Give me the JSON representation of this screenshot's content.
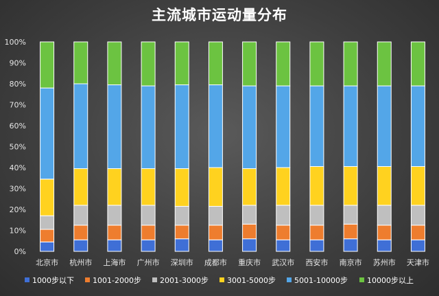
{
  "chart_data": {
    "type": "bar",
    "stacked": true,
    "percent": true,
    "title": "主流城市运动量分布",
    "categories": [
      "北京市",
      "杭州市",
      "上海市",
      "广州市",
      "深圳市",
      "成都市",
      "重庆市",
      "武汉市",
      "西安市",
      "南京市",
      "苏州市",
      "天津市"
    ],
    "series": [
      {
        "name": "1000步以下",
        "color": "#3f6fd6",
        "values": [
          4.5,
          5.5,
          5.5,
          5.5,
          6.0,
          5.5,
          6.0,
          5.5,
          5.5,
          6.0,
          5.5,
          5.5
        ]
      },
      {
        "name": "1001-2000步",
        "color": "#ee7d2e",
        "values": [
          6.0,
          7.0,
          7.0,
          7.0,
          6.5,
          7.0,
          7.0,
          7.0,
          7.0,
          7.0,
          7.0,
          7.0
        ]
      },
      {
        "name": "2001-3000步",
        "color": "#bfbfbf",
        "values": [
          6.5,
          9.5,
          9.5,
          9.5,
          9.0,
          9.0,
          9.0,
          9.5,
          9.5,
          9.0,
          9.5,
          9.5
        ]
      },
      {
        "name": "3001-5000步",
        "color": "#ffd21f",
        "values": [
          17.5,
          17.5,
          17.5,
          17.5,
          18.0,
          18.5,
          17.5,
          18.0,
          18.5,
          18.5,
          18.5,
          18.5
        ]
      },
      {
        "name": "5001-10000步",
        "color": "#53a6e8",
        "values": [
          43.5,
          40.5,
          40.0,
          39.5,
          40.0,
          39.5,
          39.5,
          39.0,
          38.5,
          38.5,
          38.5,
          38.5
        ]
      },
      {
        "name": "10000步以上",
        "color": "#6cc341",
        "values": [
          22.0,
          20.0,
          20.5,
          21.0,
          20.5,
          20.5,
          21.0,
          21.0,
          21.0,
          21.0,
          21.0,
          21.0
        ]
      }
    ],
    "ylim": [
      0,
      100
    ],
    "yticks": [
      "0%",
      "10%",
      "20%",
      "30%",
      "40%",
      "50%",
      "60%",
      "70%",
      "80%",
      "90%",
      "100%"
    ],
    "grid": false,
    "legend": "bottom"
  }
}
